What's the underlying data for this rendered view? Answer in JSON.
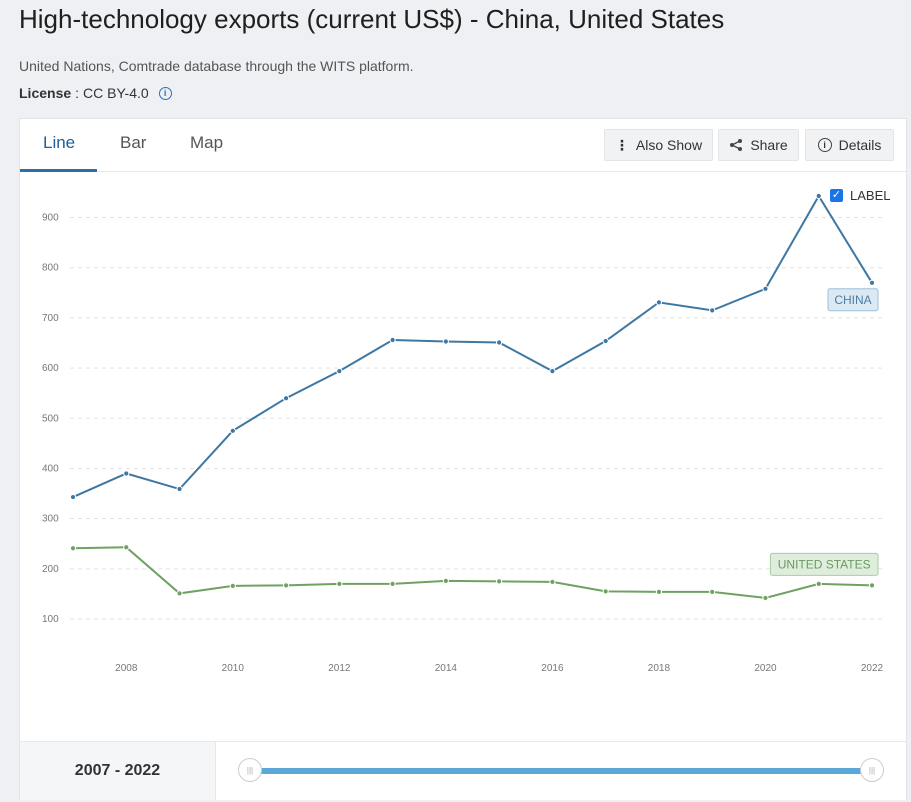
{
  "page": {
    "title": "High-technology exports (current US$) - China, United States",
    "source": "United Nations, Comtrade database through the WITS platform.",
    "license_label": "License",
    "license_value": "CC BY-4.0",
    "info_icon": "info-icon"
  },
  "tabs": [
    "Line",
    "Bar",
    "Map"
  ],
  "active_tab": "Line",
  "toolbar": {
    "also_show": "Also Show",
    "share": "Share",
    "details": "Details"
  },
  "label_toggle": {
    "text": "LABEL",
    "checked": true
  },
  "range": {
    "text": "2007 - 2022"
  },
  "chart_data": {
    "type": "line",
    "x": [
      2007,
      2008,
      2009,
      2010,
      2011,
      2012,
      2013,
      2014,
      2015,
      2016,
      2017,
      2018,
      2019,
      2020,
      2021,
      2022
    ],
    "xticks": [
      "2008",
      "2010",
      "2012",
      "2014",
      "2016",
      "2018",
      "2020",
      "2022"
    ],
    "yticks": [
      "100",
      "200",
      "300",
      "400",
      "500",
      "600",
      "700",
      "800",
      "900"
    ],
    "ylim": [
      85,
      960
    ],
    "grid": true,
    "series": [
      {
        "name": "CHINA",
        "color": "#3d77a2",
        "label_bg": "#dbe9f4",
        "label_border": "#9dbfd9",
        "label_text": "#4d7da3",
        "values": [
          343,
          390,
          359,
          475,
          540,
          594,
          656,
          653,
          651,
          594,
          654,
          731,
          715,
          758,
          943,
          770
        ]
      },
      {
        "name": "UNITED STATES",
        "color": "#6ea262",
        "label_bg": "#dfeedc",
        "label_border": "#a9cca2",
        "label_text": "#6a9a60",
        "values": [
          241,
          243,
          151,
          166,
          167,
          170,
          170,
          176,
          175,
          174,
          155,
          154,
          154,
          142,
          170,
          167
        ]
      }
    ]
  }
}
